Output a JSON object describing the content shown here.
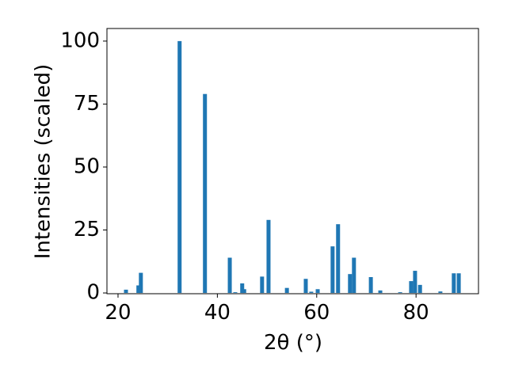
{
  "chart_data": {
    "type": "bar",
    "xlabel": "2θ (°)",
    "ylabel": "Intensities (scaled)",
    "x": [
      21.6,
      24.1,
      24.6,
      32.4,
      37.5,
      42.5,
      43.6,
      45.0,
      45.4,
      49.0,
      50.3,
      54.0,
      57.8,
      58.9,
      60.2,
      63.2,
      64.3,
      66.7,
      67.5,
      70.9,
      72.8,
      76.8,
      79.0,
      79.8,
      80.8,
      84.9,
      87.6,
      88.6
    ],
    "values": [
      1.3,
      3,
      8,
      100,
      79,
      14,
      0.3,
      3.8,
      1.5,
      6.5,
      29,
      2,
      5.6,
      0.5,
      1.5,
      18.5,
      27.3,
      7.5,
      14,
      6.3,
      1,
      0.3,
      4.7,
      8.8,
      3.2,
      0.6,
      7.8,
      7.8
    ],
    "color": "#1f77b4",
    "xlim": [
      17.77,
      92.57
    ],
    "xticks": [
      20,
      40,
      60,
      80
    ],
    "ylim": [
      -0.3,
      105
    ],
    "yticks": [
      0,
      25,
      50,
      75,
      100
    ]
  }
}
